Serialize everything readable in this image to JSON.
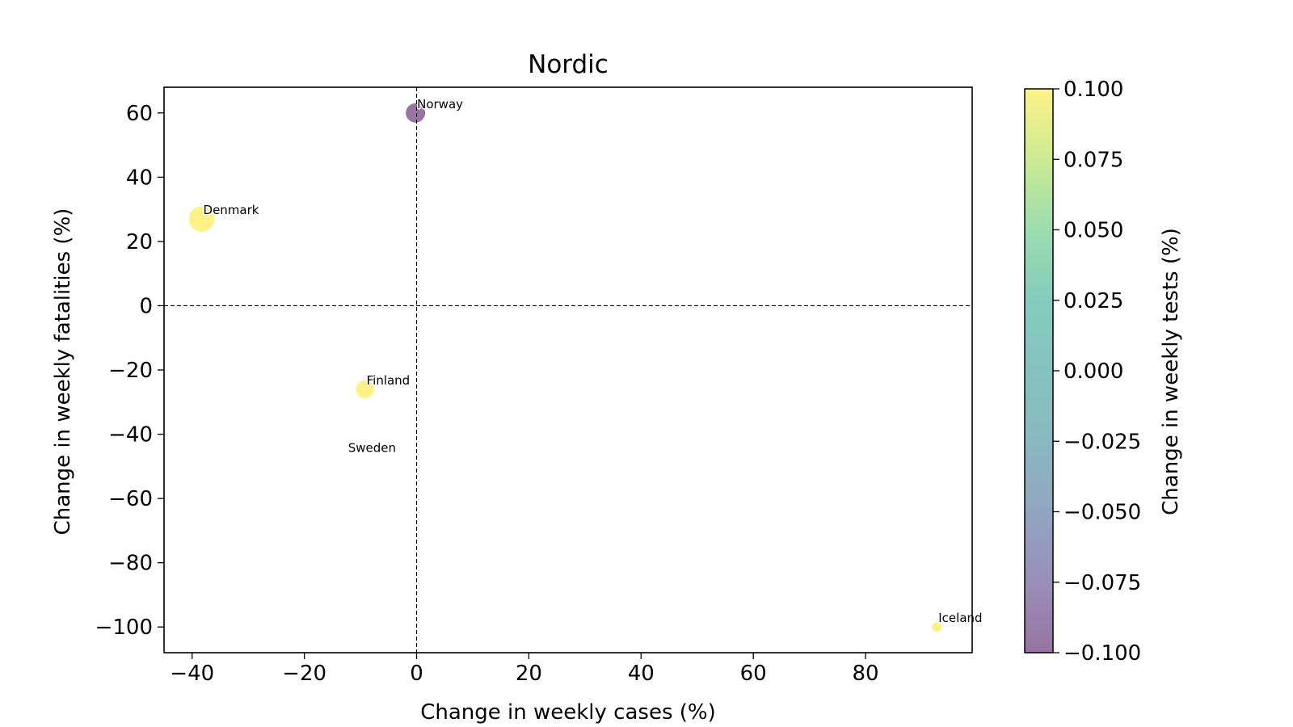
{
  "chart_data": {
    "type": "scatter",
    "title": "Nordic",
    "xlabel": "Change in weekly cases (%)",
    "ylabel": "Change in weekly fatalities (%)",
    "xlim": [
      -45,
      99
    ],
    "ylim": [
      -108,
      68
    ],
    "xticks": [
      -40,
      -20,
      0,
      20,
      40,
      60,
      80
    ],
    "yticks": [
      -100,
      -80,
      -60,
      -40,
      -20,
      0,
      20,
      40,
      60
    ],
    "xtick_labels": [
      "−40",
      "−20",
      "0",
      "20",
      "40",
      "60",
      "80"
    ],
    "ytick_labels": [
      "−100",
      "−80",
      "−60",
      "−40",
      "−20",
      "0",
      "20",
      "40",
      "60"
    ],
    "reference_lines": {
      "x": 0,
      "y": 0,
      "style": "dashed"
    },
    "grid": false,
    "colorbar": {
      "label": "Change in weekly tests (%)",
      "range": [
        -0.1,
        0.1
      ],
      "ticks": [
        -0.1,
        -0.075,
        -0.05,
        -0.025,
        0.0,
        0.025,
        0.05,
        0.075,
        0.1
      ],
      "tick_labels": [
        "−0.100",
        "−0.075",
        "−0.050",
        "−0.025",
        "0.000",
        "0.025",
        "0.050",
        "0.075",
        "0.100"
      ],
      "colormap": "viridis",
      "alpha": 0.55
    },
    "points": [
      {
        "label": "Norway",
        "x": -0.2,
        "y": 60,
        "color_value": -0.1,
        "size": 3.2,
        "color": "#440154"
      },
      {
        "label": "Denmark",
        "x": -38.3,
        "y": 27,
        "color_value": 0.1,
        "size": 4.2,
        "color": "#fde725"
      },
      {
        "label": "Finland",
        "x": -9.2,
        "y": -26,
        "color_value": 0.1,
        "size": 3.0,
        "color": "#fde725"
      },
      {
        "label": "Sweden",
        "x": -12.5,
        "y": -47,
        "color_value": 0.1,
        "size": 0,
        "color": "#fde725"
      },
      {
        "label": "Iceland",
        "x": 92.7,
        "y": -100,
        "color_value": 0.1,
        "size": 1.6,
        "color": "#fde725"
      }
    ]
  }
}
